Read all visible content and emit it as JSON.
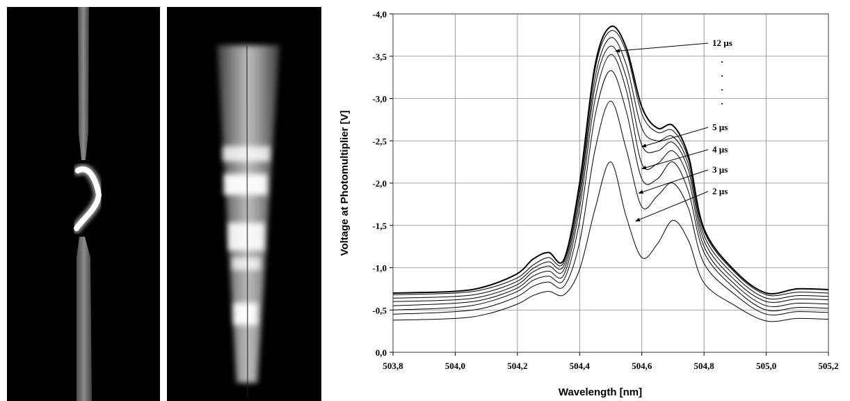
{
  "photos": {
    "left": "wire-explosion-photo",
    "middle": "spectral-streak-photo"
  },
  "chart_data": {
    "type": "line",
    "xlabel": "Wavelength [nm]",
    "ylabel": "Voltage at Photomultiplier [V]",
    "xlim": [
      503.8,
      505.2
    ],
    "ylim": [
      0.0,
      -4.0
    ],
    "y_inverted": true,
    "x_ticks": [
      "503,8",
      "504,0",
      "504,2",
      "504,4",
      "504,6",
      "504,8",
      "505,0",
      "505,2"
    ],
    "y_ticks": [
      "0,0",
      "-0,5",
      "-1,0",
      "-1,5",
      "-2,0",
      "-2,5",
      "-3,0",
      "-3,5",
      "-4,0"
    ],
    "grid": true,
    "x": [
      503.8,
      504.0,
      504.1,
      504.2,
      504.25,
      504.3,
      504.35,
      504.4,
      504.45,
      504.5,
      504.55,
      504.6,
      504.65,
      504.7,
      504.75,
      504.8,
      504.9,
      505.0,
      505.1,
      505.2
    ],
    "series": [
      {
        "name": "2 µs",
        "values": [
          -0.38,
          -0.4,
          -0.45,
          -0.57,
          -0.67,
          -0.72,
          -0.68,
          -0.98,
          -1.7,
          -2.25,
          -1.6,
          -1.12,
          -1.28,
          -1.56,
          -1.32,
          -0.82,
          -0.55,
          -0.37,
          -0.4,
          -0.39
        ]
      },
      {
        "name": "3 µs",
        "values": [
          -0.45,
          -0.48,
          -0.53,
          -0.66,
          -0.78,
          -0.83,
          -0.78,
          -1.3,
          -2.4,
          -2.97,
          -2.4,
          -1.72,
          -1.85,
          -2.0,
          -1.7,
          -1.05,
          -0.68,
          -0.45,
          -0.48,
          -0.47
        ]
      },
      {
        "name": "",
        "values": [
          -0.5,
          -0.53,
          -0.59,
          -0.72,
          -0.85,
          -0.9,
          -0.86,
          -1.55,
          -2.8,
          -3.33,
          -2.85,
          -2.05,
          -2.05,
          -2.25,
          -1.9,
          -1.18,
          -0.75,
          -0.5,
          -0.53,
          -0.52
        ]
      },
      {
        "name": "4 µs",
        "values": [
          -0.55,
          -0.58,
          -0.63,
          -0.76,
          -0.9,
          -0.96,
          -0.92,
          -1.7,
          -3.0,
          -3.52,
          -3.1,
          -2.23,
          -2.23,
          -2.38,
          -2.05,
          -1.25,
          -0.8,
          -0.55,
          -0.58,
          -0.57
        ]
      },
      {
        "name": "5 µs",
        "values": [
          -0.6,
          -0.62,
          -0.67,
          -0.8,
          -0.95,
          -1.02,
          -0.98,
          -1.8,
          -3.15,
          -3.62,
          -3.25,
          -2.45,
          -2.38,
          -2.48,
          -2.15,
          -1.32,
          -0.85,
          -0.6,
          -0.63,
          -0.62
        ]
      },
      {
        "name": "",
        "values": [
          -0.64,
          -0.66,
          -0.71,
          -0.84,
          -0.99,
          -1.07,
          -1.03,
          -1.88,
          -3.25,
          -3.72,
          -3.4,
          -2.65,
          -2.5,
          -2.55,
          -2.22,
          -1.38,
          -0.9,
          -0.64,
          -0.67,
          -0.66
        ]
      },
      {
        "name": "",
        "values": [
          -0.68,
          -0.7,
          -0.75,
          -0.88,
          -1.03,
          -1.12,
          -1.07,
          -1.95,
          -3.35,
          -3.8,
          -3.55,
          -2.82,
          -2.6,
          -2.62,
          -2.28,
          -1.43,
          -0.94,
          -0.68,
          -0.71,
          -0.7
        ]
      },
      {
        "name": "12 µs",
        "values": [
          -0.7,
          -0.72,
          -0.78,
          -0.93,
          -1.1,
          -1.18,
          -1.1,
          -2.0,
          -3.4,
          -3.85,
          -3.6,
          -2.9,
          -2.65,
          -2.68,
          -2.32,
          -1.46,
          -0.96,
          -0.7,
          -0.75,
          -0.74
        ]
      }
    ],
    "annotations": [
      {
        "text": "12 µs",
        "arrow_to": [
          504.515,
          -3.56
        ]
      },
      {
        "text": "5 µs",
        "arrow_to": [
          504.6,
          -2.43
        ]
      },
      {
        "text": "4 µs",
        "arrow_to": [
          504.6,
          -2.17
        ]
      },
      {
        "text": "3 µs",
        "arrow_to": [
          504.59,
          -1.88
        ]
      },
      {
        "text": "2 µs",
        "arrow_to": [
          504.58,
          -1.55
        ]
      }
    ],
    "ellipsis_dots": [
      "·",
      "·",
      "·",
      "·"
    ]
  }
}
